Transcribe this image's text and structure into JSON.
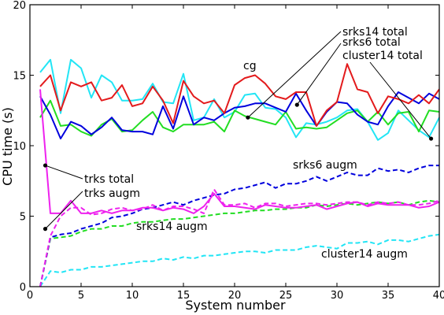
{
  "chart_data": {
    "type": "line",
    "title": "",
    "xlabel": "System number",
    "ylabel": "CPU time (s)",
    "xlim": [
      0,
      40
    ],
    "ylim": [
      0,
      20
    ],
    "xticks": [
      0,
      5,
      10,
      15,
      20,
      25,
      30,
      35,
      40
    ],
    "yticks": [
      0,
      5,
      10,
      15,
      20
    ],
    "grid": false,
    "x": [
      1,
      2,
      3,
      4,
      5,
      6,
      7,
      8,
      9,
      10,
      11,
      12,
      13,
      14,
      15,
      16,
      17,
      18,
      19,
      20,
      21,
      22,
      23,
      24,
      25,
      26,
      27,
      28,
      29,
      30,
      31,
      32,
      33,
      34,
      35,
      36,
      37,
      38,
      39,
      40
    ],
    "series": [
      {
        "key": "cg",
        "color": "#e31a1c",
        "style": "solid",
        "values": [
          14.2,
          15.0,
          12.5,
          14.5,
          14.2,
          14.5,
          13.2,
          13.4,
          14.3,
          12.8,
          13.0,
          14.2,
          13.2,
          11.6,
          14.6,
          13.5,
          13.0,
          13.2,
          12.3,
          14.3,
          14.8,
          15.0,
          14.4,
          13.5,
          13.3,
          13.8,
          13.8,
          11.4,
          12.5,
          13.1,
          15.8,
          14.0,
          13.8,
          12.3,
          13.5,
          13.3,
          13.0,
          13.6,
          13.0,
          14.0
        ]
      },
      {
        "key": "srks14-total",
        "color": "#22dd22",
        "style": "solid",
        "values": [
          12.0,
          13.2,
          11.4,
          11.5,
          11.0,
          10.7,
          11.5,
          11.9,
          11.0,
          11.1,
          11.8,
          12.4,
          11.3,
          11.0,
          11.5,
          11.5,
          11.5,
          11.7,
          11.0,
          12.5,
          12.1,
          11.9,
          11.7,
          11.5,
          12.4,
          11.2,
          11.3,
          11.2,
          11.3,
          11.8,
          12.3,
          12.5,
          11.7,
          12.4,
          11.5,
          12.3,
          12.4,
          11.0,
          12.5,
          12.4
        ]
      },
      {
        "key": "srks6-total",
        "color": "#0000dd",
        "style": "solid",
        "values": [
          13.5,
          12.2,
          10.5,
          11.7,
          11.4,
          10.8,
          11.3,
          12.0,
          11.1,
          11.0,
          11.0,
          10.8,
          12.8,
          11.2,
          13.5,
          11.5,
          12.0,
          11.8,
          12.3,
          12.7,
          12.8,
          13.0,
          13.0,
          12.7,
          12.4,
          13.7,
          12.5,
          11.4,
          12.4,
          13.1,
          13.0,
          12.2,
          11.7,
          11.5,
          12.8,
          13.8,
          13.4,
          13.0,
          13.7,
          13.3
        ]
      },
      {
        "key": "cluster14-total",
        "color": "#22e5f5",
        "style": "solid",
        "values": [
          15.2,
          16.1,
          12.3,
          16.1,
          15.5,
          13.4,
          15.0,
          14.5,
          13.2,
          13.2,
          13.3,
          14.4,
          13.1,
          13.0,
          15.1,
          11.8,
          12.0,
          13.3,
          12.0,
          12.4,
          13.6,
          13.7,
          12.7,
          12.6,
          12.0,
          10.6,
          11.6,
          11.5,
          11.7,
          12.0,
          12.5,
          12.6,
          11.7,
          10.4,
          10.9,
          12.5,
          11.8,
          11.1,
          10.6,
          12.0
        ]
      },
      {
        "key": "trks-total",
        "color": "#ee22ee",
        "style": "solid",
        "values": [
          14.0,
          5.2,
          5.2,
          6.1,
          5.2,
          5.2,
          5.4,
          5.2,
          5.4,
          5.4,
          5.6,
          5.6,
          5.4,
          5.6,
          5.5,
          5.2,
          5.7,
          6.6,
          5.7,
          5.7,
          5.6,
          5.5,
          5.8,
          5.7,
          5.6,
          5.6,
          5.7,
          5.8,
          5.5,
          5.7,
          5.9,
          6.0,
          5.7,
          5.9,
          5.8,
          5.8,
          5.8,
          5.6,
          5.7,
          6.0
        ]
      },
      {
        "key": "trks-augm",
        "color": "#ee22ee",
        "style": "dashed",
        "values": [
          0.0,
          3.6,
          5.0,
          5.6,
          5.6,
          5.1,
          5.2,
          5.5,
          5.6,
          5.4,
          5.5,
          5.8,
          5.4,
          5.7,
          5.7,
          5.5,
          5.2,
          6.9,
          5.8,
          5.8,
          5.9,
          5.6,
          5.9,
          5.9,
          5.7,
          5.8,
          5.9,
          5.9,
          5.8,
          5.9,
          6.0,
          6.0,
          5.8,
          6.0,
          5.9,
          6.0,
          5.8,
          5.8,
          5.9,
          6.1
        ]
      },
      {
        "key": "srks6-augm",
        "color": "#0000dd",
        "style": "dashed",
        "values": [
          0.0,
          3.5,
          3.7,
          3.8,
          4.1,
          4.3,
          4.5,
          4.9,
          5.0,
          5.2,
          5.5,
          5.6,
          5.8,
          6.0,
          5.8,
          6.1,
          6.3,
          6.5,
          6.6,
          6.9,
          7.0,
          7.2,
          7.4,
          7.0,
          7.3,
          7.3,
          7.5,
          7.8,
          7.5,
          7.8,
          8.1,
          7.9,
          7.9,
          8.4,
          8.2,
          8.3,
          8.1,
          8.4,
          8.6,
          8.6
        ]
      },
      {
        "key": "srks14-augm",
        "color": "#22dd22",
        "style": "dashed",
        "values": [
          0.0,
          3.4,
          3.5,
          3.6,
          3.9,
          4.1,
          4.1,
          4.3,
          4.3,
          4.5,
          4.6,
          4.6,
          4.7,
          4.8,
          4.8,
          4.9,
          5.0,
          5.1,
          5.2,
          5.2,
          5.3,
          5.4,
          5.4,
          5.5,
          5.5,
          5.6,
          5.6,
          5.8,
          5.7,
          5.8,
          5.9,
          5.8,
          5.9,
          6.0,
          5.9,
          6.0,
          5.8,
          6.0,
          6.1,
          6.0
        ]
      },
      {
        "key": "cluster14-augm",
        "color": "#22e5f5",
        "style": "dashed",
        "values": [
          0.0,
          1.1,
          1.0,
          1.2,
          1.2,
          1.4,
          1.4,
          1.5,
          1.6,
          1.7,
          1.8,
          1.8,
          2.0,
          1.9,
          2.1,
          2.0,
          2.2,
          2.2,
          2.3,
          2.4,
          2.5,
          2.5,
          2.4,
          2.6,
          2.6,
          2.6,
          2.8,
          2.9,
          2.8,
          2.7,
          3.1,
          3.1,
          3.2,
          3.0,
          3.3,
          3.3,
          3.2,
          3.4,
          3.6,
          3.7
        ]
      }
    ],
    "annotations": [
      {
        "key": "cg",
        "text": "cg"
      },
      {
        "key": "srks14-total",
        "text": "srks14 total"
      },
      {
        "key": "srks6-total",
        "text": "srks6 total"
      },
      {
        "key": "cluster14-total",
        "text": "cluster14 total"
      },
      {
        "key": "trks-total",
        "text": "trks total"
      },
      {
        "key": "trks-augm",
        "text": "trks augm"
      },
      {
        "key": "srks6-augm",
        "text": "srks6 augm"
      },
      {
        "key": "srks14-augm",
        "text": "srks14 augm"
      },
      {
        "key": "cluster14-augm",
        "text": "cluster14 augm"
      }
    ],
    "callout_points": [
      {
        "key": "srks14-total",
        "x": 21.3,
        "y": 12.0
      },
      {
        "key": "srks6-total",
        "x": 26.1,
        "y": 12.9
      },
      {
        "key": "cluster14-total",
        "x": 39.2,
        "y": 10.5
      },
      {
        "key": "trks-total",
        "x": 1.5,
        "y": 8.6
      },
      {
        "key": "trks-augm",
        "x": 1.5,
        "y": 4.1
      }
    ]
  }
}
